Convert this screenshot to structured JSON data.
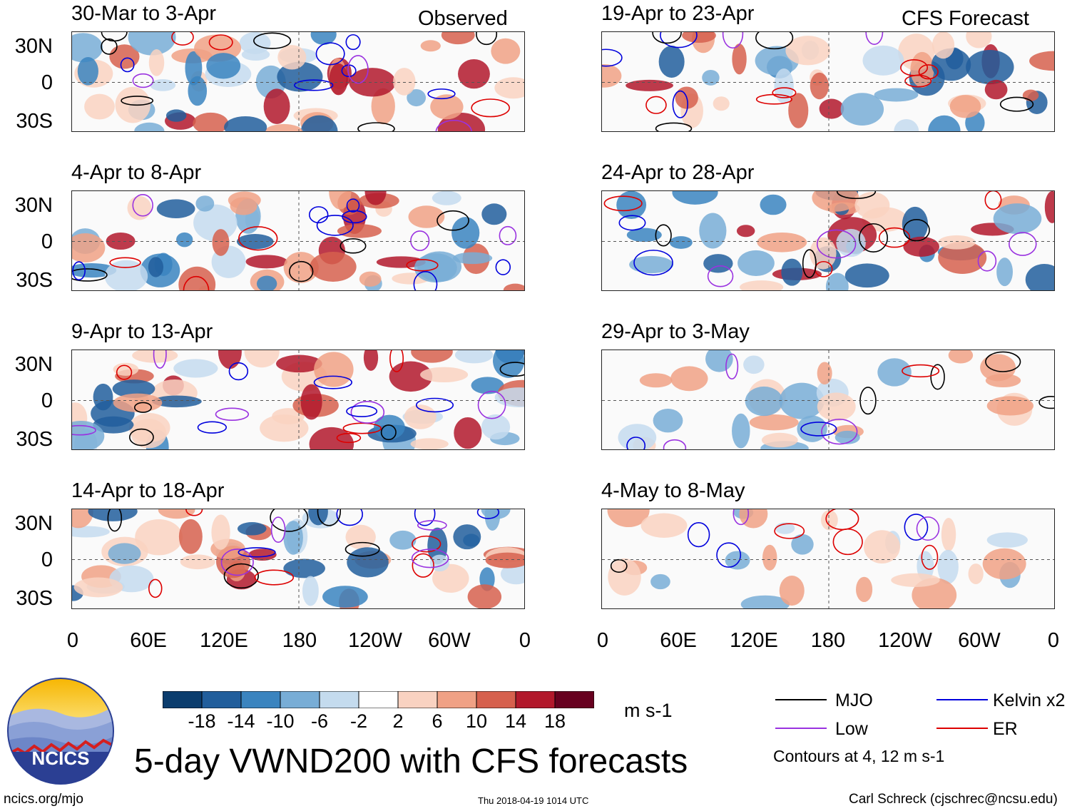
{
  "headers": {
    "left": "Observed",
    "right": "CFS Forecast"
  },
  "observed_panels": [
    {
      "period": "30-Mar to 3-Apr"
    },
    {
      "period": "4-Apr to 8-Apr"
    },
    {
      "period": "9-Apr to 13-Apr"
    },
    {
      "period": "14-Apr to 18-Apr"
    }
  ],
  "forecast_panels": [
    {
      "period": "19-Apr to 23-Apr"
    },
    {
      "period": "24-Apr to 28-Apr"
    },
    {
      "period": "29-Apr to 3-May"
    },
    {
      "period": "4-May to 8-May"
    }
  ],
  "lat_labels": [
    "30N",
    "0",
    "30S"
  ],
  "lon_labels": [
    "0",
    "60E",
    "120E",
    "180",
    "120W",
    "60W",
    "0"
  ],
  "colorbar": {
    "labels": [
      "-18",
      "-14",
      "-10",
      "-6",
      "-2",
      "2",
      "6",
      "10",
      "14",
      "18"
    ],
    "units": "m s-1",
    "colors": [
      "#0b3d6e",
      "#215e9c",
      "#3a84bf",
      "#78add6",
      "#c4dbee",
      "#ffffff",
      "#f9d2c1",
      "#f0a185",
      "#d6604d",
      "#b2182b",
      "#67001f"
    ]
  },
  "legend": {
    "items": [
      {
        "label": "MJO",
        "color": "#000000"
      },
      {
        "label": "Kelvin x2",
        "color": "#0000dd"
      },
      {
        "label": "Low",
        "color": "#9a32e0"
      },
      {
        "label": "ER",
        "color": "#dd0000"
      }
    ],
    "note": "Contours at 4, 12 m s-1"
  },
  "title": "5-day VWND200 with CFS forecasts",
  "logo_text": "NCICS",
  "footer": {
    "url": "ncics.org/mjo",
    "timestamp": "Thu 2018-04-19 1014 UTC",
    "credit": "Carl Schreck (cjschrec@ncsu.edu)"
  }
}
